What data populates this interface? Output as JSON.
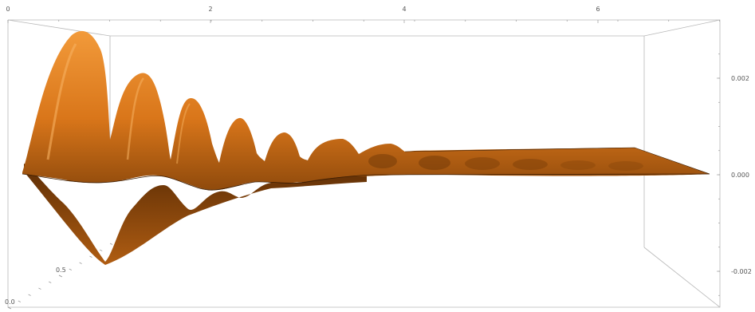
{
  "chart_data": {
    "type": "surface3d",
    "title": "",
    "x_axis": {
      "label": "",
      "range": [
        0,
        7
      ],
      "ticks": [
        0,
        2,
        4,
        6
      ],
      "tick_labels": [
        "0",
        "2",
        "4",
        "6"
      ]
    },
    "y_axis": {
      "label": "",
      "range": [
        0,
        1
      ],
      "ticks": [
        0.0,
        0.5
      ],
      "tick_labels": [
        "0.0",
        "0.5"
      ]
    },
    "z_axis": {
      "label": "",
      "range": [
        -0.0025,
        0.0025
      ],
      "ticks": [
        0.002,
        0.0,
        -0.002
      ],
      "tick_labels": [
        "0.002",
        "0.000",
        "-0.002"
      ]
    },
    "surface": {
      "color": "#e07f1a",
      "shade_color": "#7a3d08",
      "description_of_shape": "damped oscillation along x, largest near x=0.5, decaying toward zero by x~4, flat from x~4 to 7",
      "peaks": [
        {
          "x": 0.55,
          "z": 0.0025
        },
        {
          "x": 1.05,
          "z": 0.0017
        },
        {
          "x": 1.55,
          "z": 0.0012
        },
        {
          "x": 2.1,
          "z": 0.0008
        },
        {
          "x": 2.6,
          "z": 0.0005
        },
        {
          "x": 3.1,
          "z": 0.0003
        },
        {
          "x": 3.6,
          "z": 0.00012
        }
      ],
      "troughs": [
        {
          "x": 0.8,
          "z": -0.0018
        },
        {
          "x": 1.3,
          "z": -0.0011
        },
        {
          "x": 1.85,
          "z": -0.0007
        },
        {
          "x": 2.35,
          "z": -0.0004
        },
        {
          "x": 2.85,
          "z": -0.00022
        },
        {
          "x": 3.35,
          "z": -0.0001
        }
      ]
    },
    "grid": false,
    "box": true
  }
}
